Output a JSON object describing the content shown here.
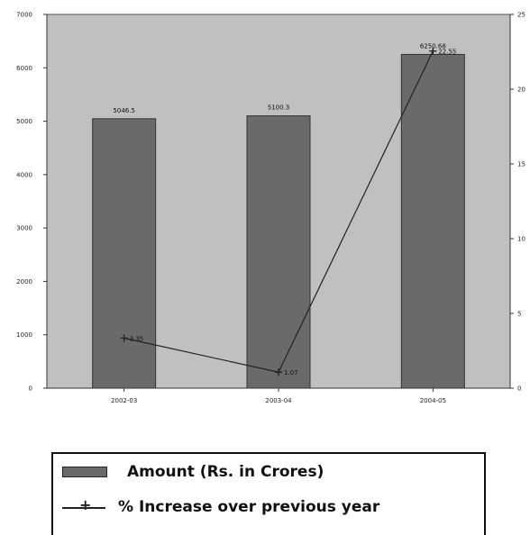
{
  "chart_data": {
    "type": "bar",
    "categories": [
      "2002-03",
      "2003-04",
      "2004-05"
    ],
    "series": [
      {
        "name": "Amount (Rs. in Crores)",
        "type": "bar",
        "axis": "left",
        "values": [
          5046.5,
          5100.3,
          6250.68
        ],
        "labels": [
          "5046.5",
          "5100.3",
          "6250.68"
        ]
      },
      {
        "name": "% Increase over previous year",
        "type": "line",
        "axis": "right",
        "values": [
          3.35,
          1.07,
          22.55
        ],
        "labels": [
          "3.35",
          "1.07",
          "22.55"
        ]
      }
    ],
    "category_labels": [
      "2002-03",
      "2003-04",
      "2004-05"
    ],
    "y_left": {
      "ylim": [
        0,
        7000
      ],
      "ticks": [
        0,
        1000,
        2000,
        3000,
        4000,
        5000,
        6000,
        7000
      ],
      "tick_labels": [
        "0",
        "1000",
        "2000",
        "3000",
        "4000",
        "5000",
        "6000",
        "7000"
      ]
    },
    "y_right": {
      "ylim": [
        0,
        25
      ],
      "ticks": [
        0,
        5,
        10,
        15,
        20,
        25
      ],
      "tick_labels": [
        "0",
        "5",
        "10",
        "15",
        "20",
        "25"
      ]
    },
    "grid": false,
    "legend_position": "bottom",
    "colors": {
      "plot_bg": "#c0c0c0",
      "bar": "#6a6a6a",
      "line": "#222222"
    }
  },
  "legend": {
    "bar_label": "Amount (Rs. in Crores)",
    "line_label": "% Increase over previous year"
  }
}
